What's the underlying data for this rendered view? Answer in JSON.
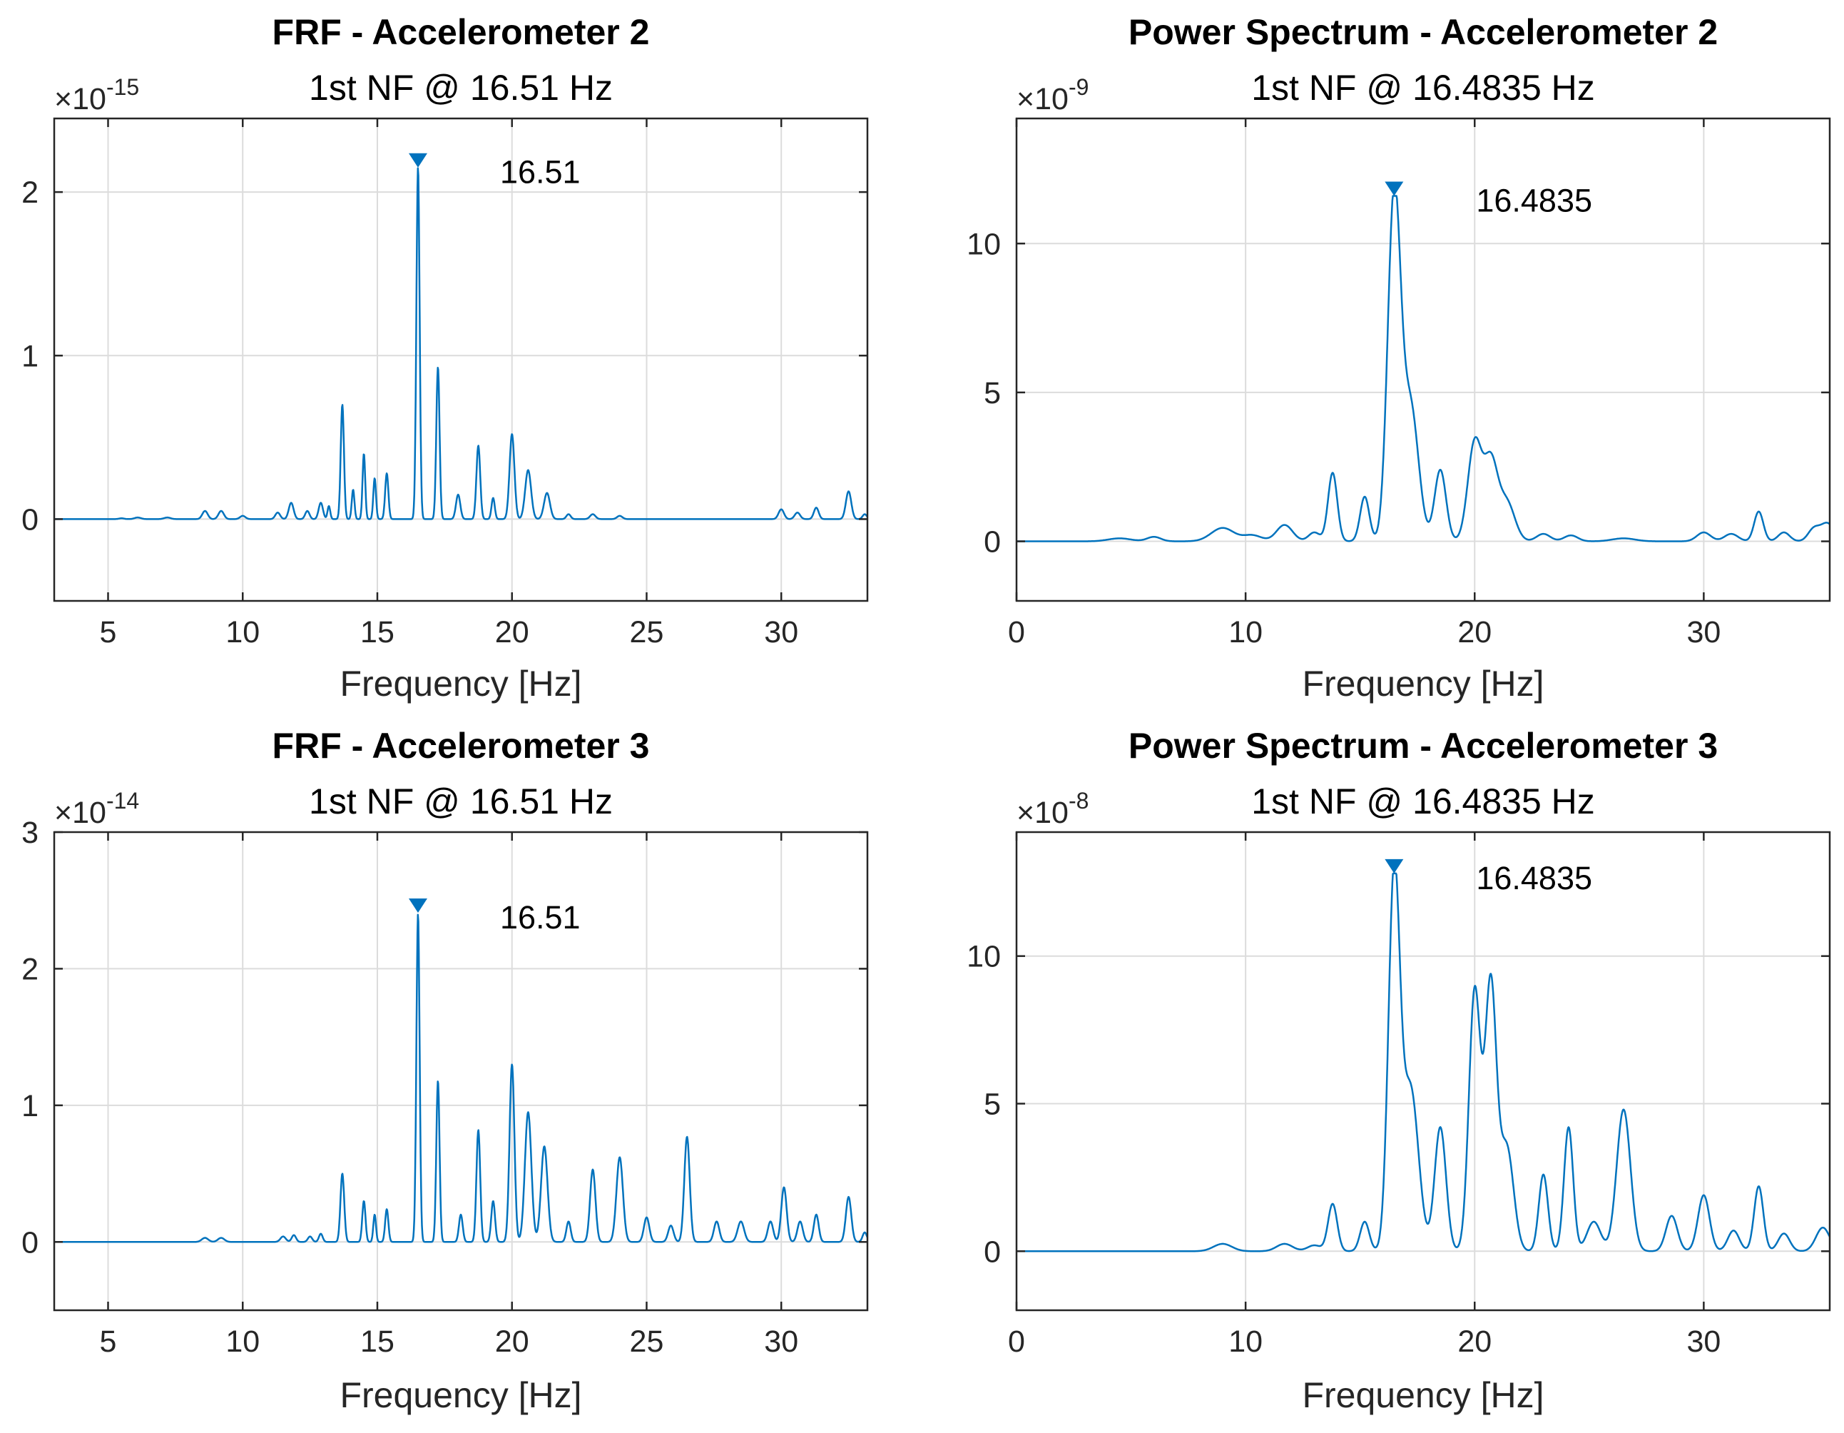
{
  "figure": {
    "background": "#ffffff",
    "line_color": "#0072bd"
  },
  "chart_data": [
    {
      "type": "line",
      "title": "FRF - Accelerometer 2",
      "subtitle": "1st NF @ 16.51 Hz",
      "xlabel": "Frequency [Hz]",
      "ylabel": "",
      "exponent": "-15",
      "exponent_text": "10",
      "xlim": [
        3,
        33.2
      ],
      "ylim": [
        -0.5,
        2.45
      ],
      "xticks": [
        5,
        10,
        15,
        20,
        25,
        30
      ],
      "xtick_labels": [
        "5",
        "10",
        "15",
        "20",
        "25",
        "30"
      ],
      "yticks": [
        0,
        1,
        2
      ],
      "ytick_labels": [
        "0",
        "1",
        "2"
      ],
      "grid": true,
      "peak": {
        "x": 16.51,
        "y": 2.15,
        "label": "16.51"
      },
      "peaks": [
        [
          5.5,
          0.005,
          0.1
        ],
        [
          6.1,
          0.01,
          0.12
        ],
        [
          7.2,
          0.01,
          0.12
        ],
        [
          8.6,
          0.05,
          0.1
        ],
        [
          9.2,
          0.05,
          0.1
        ],
        [
          10.0,
          0.02,
          0.1
        ],
        [
          11.3,
          0.04,
          0.09
        ],
        [
          11.8,
          0.1,
          0.09
        ],
        [
          12.4,
          0.05,
          0.08
        ],
        [
          12.9,
          0.1,
          0.08
        ],
        [
          13.2,
          0.08,
          0.05
        ],
        [
          13.7,
          0.7,
          0.06
        ],
        [
          14.1,
          0.18,
          0.05
        ],
        [
          14.5,
          0.4,
          0.05
        ],
        [
          14.9,
          0.25,
          0.05
        ],
        [
          15.35,
          0.28,
          0.06
        ],
        [
          16.51,
          2.15,
          0.06
        ],
        [
          17.25,
          0.93,
          0.06
        ],
        [
          18.0,
          0.15,
          0.08
        ],
        [
          18.75,
          0.45,
          0.07
        ],
        [
          19.3,
          0.13,
          0.06
        ],
        [
          20.0,
          0.52,
          0.09
        ],
        [
          20.6,
          0.3,
          0.11
        ],
        [
          21.3,
          0.16,
          0.11
        ],
        [
          22.1,
          0.03,
          0.08
        ],
        [
          23.0,
          0.03,
          0.1
        ],
        [
          24.0,
          0.02,
          0.1
        ],
        [
          30.0,
          0.06,
          0.1
        ],
        [
          30.6,
          0.04,
          0.1
        ],
        [
          31.3,
          0.07,
          0.09
        ],
        [
          32.5,
          0.17,
          0.1
        ],
        [
          33.1,
          0.03,
          0.08
        ]
      ]
    },
    {
      "type": "line",
      "title": "Power Spectrum - Accelerometer 2",
      "subtitle": "1st NF @ 16.4835 Hz",
      "xlabel": "Frequency [Hz]",
      "ylabel": "",
      "exponent": "-9",
      "exponent_text": "10",
      "xlim": [
        0,
        35.5
      ],
      "ylim": [
        -2,
        14.2
      ],
      "xticks": [
        0,
        10,
        20,
        30
      ],
      "xtick_labels": [
        "0",
        "10",
        "20",
        "30"
      ],
      "yticks": [
        0,
        5,
        10
      ],
      "ytick_labels": [
        "0",
        "5",
        "10"
      ],
      "grid": true,
      "peak": {
        "x": 16.4835,
        "y": 11.6,
        "label": "16.4835"
      },
      "peaks": [
        [
          4.5,
          0.1,
          0.5
        ],
        [
          6.0,
          0.15,
          0.3
        ],
        [
          9.0,
          0.45,
          0.5
        ],
        [
          10.3,
          0.2,
          0.4
        ],
        [
          11.7,
          0.55,
          0.35
        ],
        [
          13.0,
          0.3,
          0.25
        ],
        [
          13.8,
          2.3,
          0.2
        ],
        [
          15.2,
          1.5,
          0.2
        ],
        [
          16.4835,
          11.5,
          0.28
        ],
        [
          17.2,
          4.5,
          0.35
        ],
        [
          18.5,
          2.4,
          0.25
        ],
        [
          20.0,
          3.3,
          0.3
        ],
        [
          20.7,
          2.6,
          0.3
        ],
        [
          21.4,
          1.3,
          0.35
        ],
        [
          23.0,
          0.25,
          0.3
        ],
        [
          24.2,
          0.2,
          0.3
        ],
        [
          26.5,
          0.1,
          0.5
        ],
        [
          30.0,
          0.3,
          0.3
        ],
        [
          31.2,
          0.25,
          0.3
        ],
        [
          32.4,
          1.0,
          0.2
        ],
        [
          33.5,
          0.3,
          0.25
        ],
        [
          34.8,
          0.4,
          0.25
        ],
        [
          35.4,
          0.6,
          0.3
        ]
      ]
    },
    {
      "type": "line",
      "title": "FRF - Accelerometer 3",
      "subtitle": "1st NF @ 16.51 Hz",
      "xlabel": "Frequency [Hz]",
      "ylabel": "",
      "exponent": "-14",
      "exponent_text": "10",
      "xlim": [
        3,
        33.2
      ],
      "ylim": [
        -0.5,
        3.0
      ],
      "xticks": [
        5,
        10,
        15,
        20,
        25,
        30
      ],
      "xtick_labels": [
        "5",
        "10",
        "15",
        "20",
        "25",
        "30"
      ],
      "yticks": [
        0,
        1,
        2,
        3
      ],
      "ytick_labels": [
        "0",
        "1",
        "2",
        "3"
      ],
      "grid": true,
      "peak": {
        "x": 16.51,
        "y": 2.41,
        "label": "16.51"
      },
      "peaks": [
        [
          8.6,
          0.03,
          0.12
        ],
        [
          9.2,
          0.03,
          0.12
        ],
        [
          11.5,
          0.04,
          0.1
        ],
        [
          11.9,
          0.05,
          0.08
        ],
        [
          12.5,
          0.04,
          0.08
        ],
        [
          12.9,
          0.06,
          0.07
        ],
        [
          13.7,
          0.5,
          0.07
        ],
        [
          14.5,
          0.3,
          0.06
        ],
        [
          14.9,
          0.2,
          0.05
        ],
        [
          15.35,
          0.24,
          0.06
        ],
        [
          16.51,
          2.4,
          0.06
        ],
        [
          17.25,
          1.18,
          0.06
        ],
        [
          18.1,
          0.2,
          0.07
        ],
        [
          18.75,
          0.82,
          0.07
        ],
        [
          19.3,
          0.3,
          0.07
        ],
        [
          20.0,
          1.3,
          0.09
        ],
        [
          20.6,
          0.95,
          0.12
        ],
        [
          21.2,
          0.7,
          0.12
        ],
        [
          22.1,
          0.15,
          0.08
        ],
        [
          23.0,
          0.53,
          0.1
        ],
        [
          24.0,
          0.62,
          0.12
        ],
        [
          25.0,
          0.18,
          0.1
        ],
        [
          25.9,
          0.12,
          0.1
        ],
        [
          26.5,
          0.77,
          0.1
        ],
        [
          27.6,
          0.15,
          0.1
        ],
        [
          28.5,
          0.15,
          0.12
        ],
        [
          29.6,
          0.15,
          0.1
        ],
        [
          30.1,
          0.4,
          0.1
        ],
        [
          30.7,
          0.15,
          0.1
        ],
        [
          31.3,
          0.2,
          0.09
        ],
        [
          32.5,
          0.33,
          0.1
        ],
        [
          33.1,
          0.07,
          0.08
        ]
      ]
    },
    {
      "type": "line",
      "title": "Power Spectrum - Accelerometer 3",
      "subtitle": "1st NF @ 16.4835 Hz",
      "xlabel": "Frequency [Hz]",
      "ylabel": "",
      "exponent": "-8",
      "exponent_text": "10",
      "xlim": [
        0,
        35.5
      ],
      "ylim": [
        -2,
        14.2
      ],
      "xticks": [
        0,
        10,
        20,
        30
      ],
      "xtick_labels": [
        "0",
        "10",
        "20",
        "30"
      ],
      "yticks": [
        0,
        5,
        10
      ],
      "ytick_labels": [
        "0",
        "5",
        "10"
      ],
      "grid": true,
      "peak": {
        "x": 16.4835,
        "y": 12.8,
        "label": "16.4835"
      },
      "peaks": [
        [
          9.0,
          0.25,
          0.4
        ],
        [
          11.7,
          0.25,
          0.35
        ],
        [
          13.0,
          0.2,
          0.3
        ],
        [
          13.8,
          1.6,
          0.2
        ],
        [
          15.2,
          1.0,
          0.2
        ],
        [
          16.4835,
          12.6,
          0.25
        ],
        [
          17.2,
          5.5,
          0.35
        ],
        [
          18.5,
          4.2,
          0.25
        ],
        [
          20.0,
          8.8,
          0.25
        ],
        [
          20.7,
          9.0,
          0.25
        ],
        [
          21.4,
          3.5,
          0.3
        ],
        [
          23.0,
          2.6,
          0.2
        ],
        [
          24.1,
          4.2,
          0.2
        ],
        [
          25.2,
          1.0,
          0.3
        ],
        [
          26.5,
          4.8,
          0.3
        ],
        [
          28.6,
          1.2,
          0.25
        ],
        [
          30.0,
          1.9,
          0.25
        ],
        [
          31.3,
          0.7,
          0.25
        ],
        [
          32.4,
          2.2,
          0.2
        ],
        [
          33.5,
          0.6,
          0.25
        ],
        [
          35.2,
          0.8,
          0.3
        ]
      ]
    }
  ]
}
